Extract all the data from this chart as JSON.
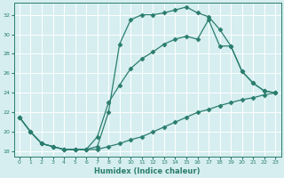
{
  "xlabel": "Humidex (Indice chaleur)",
  "bg_color": "#d6eef0",
  "line_color": "#2a7d6e",
  "grid_color": "#b8d8dc",
  "xlim": [
    -0.5,
    23.5
  ],
  "ylim": [
    17.5,
    33.2
  ],
  "xticks": [
    0,
    1,
    2,
    3,
    4,
    5,
    6,
    7,
    8,
    9,
    10,
    11,
    12,
    13,
    14,
    15,
    16,
    17,
    18,
    19,
    20,
    21,
    22,
    23
  ],
  "yticks": [
    18,
    20,
    22,
    24,
    26,
    28,
    30,
    32
  ],
  "line1_x": [
    0,
    1,
    2,
    3,
    4,
    5,
    6,
    7,
    8,
    9,
    10,
    11,
    12,
    13,
    14,
    15,
    16,
    17,
    18,
    19,
    20,
    21,
    22,
    23
  ],
  "line1_y": [
    21.5,
    20.0,
    18.8,
    18.5,
    18.2,
    18.2,
    18.2,
    18.5,
    22.0,
    29.0,
    31.5,
    32.0,
    32.0,
    32.2,
    32.5,
    32.8,
    32.2,
    31.8,
    30.5,
    28.8,
    26.2,
    25.0,
    24.2,
    24.0
  ],
  "line2_x": [
    0,
    1,
    2,
    3,
    4,
    5,
    6,
    7,
    8,
    9,
    10,
    11,
    12,
    13,
    14,
    15,
    16,
    17,
    18,
    19,
    20,
    21,
    22,
    23
  ],
  "line2_y": [
    21.5,
    20.0,
    18.8,
    18.5,
    18.2,
    18.2,
    18.2,
    19.5,
    23.0,
    24.8,
    26.5,
    27.5,
    28.2,
    29.0,
    29.5,
    29.8,
    29.5,
    31.5,
    28.8,
    28.8,
    26.2,
    25.0,
    24.2,
    24.0
  ],
  "line3_x": [
    0,
    1,
    2,
    3,
    4,
    5,
    6,
    7,
    8,
    9,
    10,
    11,
    12,
    13,
    14,
    15,
    16,
    17,
    18,
    19,
    20,
    21,
    22,
    23
  ],
  "line3_y": [
    21.5,
    20.0,
    18.8,
    18.5,
    18.2,
    18.2,
    18.2,
    18.2,
    18.5,
    18.8,
    19.2,
    19.5,
    20.0,
    20.5,
    21.0,
    21.5,
    22.0,
    22.3,
    22.7,
    23.0,
    23.3,
    23.5,
    23.8,
    24.0
  ]
}
